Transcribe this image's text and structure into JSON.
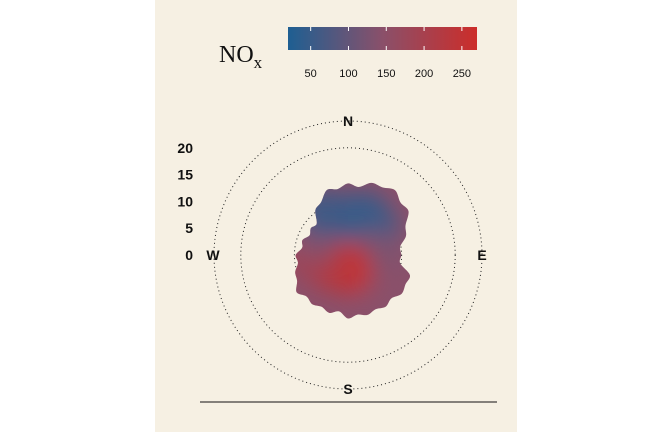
{
  "chart_data": {
    "type": "heatmap",
    "subtype": "polar_plot",
    "pollutant": "NOx",
    "title_main": "NO",
    "title_subscript": "x",
    "colorbar": {
      "ticks": [
        50,
        100,
        150,
        200,
        250
      ],
      "range": [
        20,
        270
      ],
      "colors": [
        "#1e5f92",
        "#8a506a",
        "#cc2d2a"
      ]
    },
    "radial_ticks": [
      0,
      5,
      10,
      15,
      20
    ],
    "radial_max": 25,
    "ring_values": [
      10,
      20,
      25
    ],
    "directions": {
      "north": "N",
      "east": "E",
      "south": "S",
      "west": "W"
    },
    "field": [
      {
        "direction_deg": 0,
        "speed": 7,
        "value": 40
      },
      {
        "direction_deg": 25,
        "speed": 8,
        "value": 45
      },
      {
        "direction_deg": 45,
        "speed": 7,
        "value": 55
      },
      {
        "direction_deg": 90,
        "speed": 5,
        "value": 130
      },
      {
        "direction_deg": 150,
        "speed": 5,
        "value": 150
      },
      {
        "direction_deg": 180,
        "speed": 3,
        "value": 240
      },
      {
        "direction_deg": 200,
        "speed": 2,
        "value": 255
      },
      {
        "direction_deg": 240,
        "speed": 4,
        "value": 230
      },
      {
        "direction_deg": 270,
        "speed": 7,
        "value": 190
      },
      {
        "direction_deg": 300,
        "speed": 7,
        "value": 140
      },
      {
        "direction_deg": 330,
        "speed": 9,
        "value": 60
      }
    ]
  }
}
